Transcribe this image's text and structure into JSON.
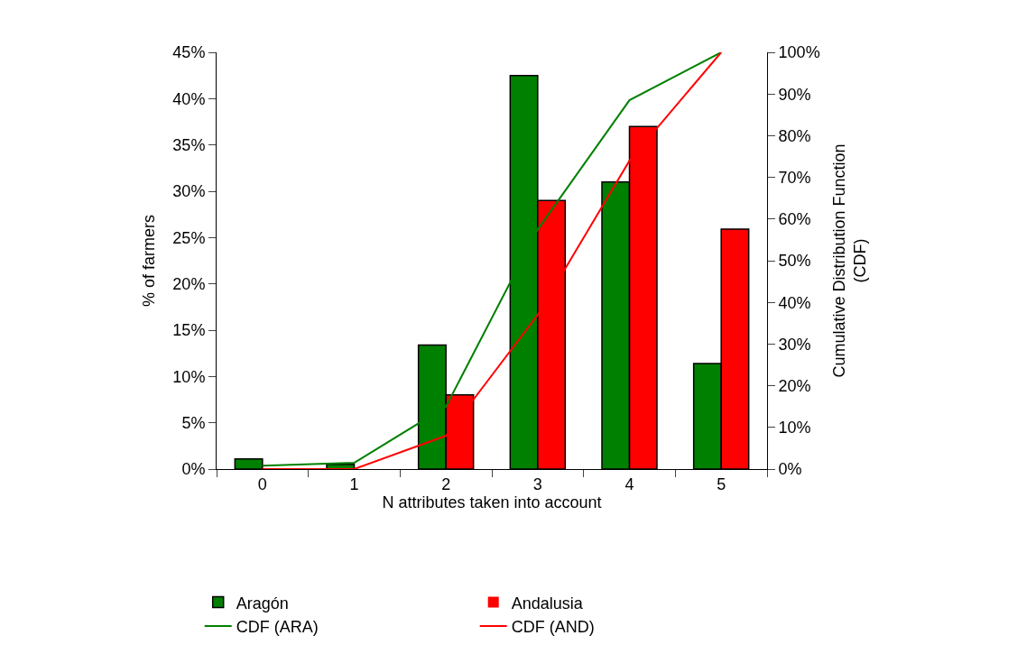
{
  "chart_data": {
    "type": "bar",
    "xlabel": "N attributes taken into account",
    "ylabel": "% of farmers",
    "y2label": "Cumulative Distribution Function\n(CDF)",
    "categories": [
      "0",
      "1",
      "2",
      "3",
      "4",
      "5"
    ],
    "series": [
      {
        "name": "Aragón",
        "color": "#008000",
        "values": [
          1.1,
          0.5,
          13.4,
          42.5,
          31.0,
          11.4
        ]
      },
      {
        "name": "Andalusia",
        "color": "#ff0000",
        "values": [
          0,
          0,
          8.0,
          29.0,
          37.0,
          25.9
        ]
      },
      {
        "name": "CDF (ARA)",
        "type": "line",
        "axis": "y2",
        "color": "#008000",
        "values": [
          0.8,
          1.5,
          15.0,
          57.5,
          88.5,
          100
        ]
      },
      {
        "name": "CDF (AND)",
        "type": "line",
        "axis": "y2",
        "color": "#ff0000",
        "values": [
          0,
          0,
          8.0,
          37.0,
          74.0,
          100
        ]
      }
    ],
    "ylim": [
      0,
      45
    ],
    "yticks": [
      {
        "value": 0,
        "label": "0%"
      },
      {
        "value": 5,
        "label": "5%"
      },
      {
        "value": 10,
        "label": "10%"
      },
      {
        "value": 15,
        "label": "15%"
      },
      {
        "value": 20,
        "label": "20%"
      },
      {
        "value": 25,
        "label": "25%"
      },
      {
        "value": 30,
        "label": "30%"
      },
      {
        "value": 35,
        "label": "35%"
      },
      {
        "value": 40,
        "label": "40%"
      },
      {
        "value": 45,
        "label": "45%"
      }
    ],
    "y2lim": [
      0,
      100
    ],
    "y2ticks": [
      {
        "value": 0,
        "label": "0%"
      },
      {
        "value": 10,
        "label": "10%"
      },
      {
        "value": 20,
        "label": "20%"
      },
      {
        "value": 30,
        "label": "30%"
      },
      {
        "value": 40,
        "label": "40%"
      },
      {
        "value": 50,
        "label": "50%"
      },
      {
        "value": 60,
        "label": "60%"
      },
      {
        "value": 70,
        "label": "70%"
      },
      {
        "value": 80,
        "label": "80%"
      },
      {
        "value": 90,
        "label": "90%"
      },
      {
        "value": 100,
        "label": "100%"
      }
    ],
    "legend": "bottom",
    "marker": "none",
    "line_style": "solid"
  }
}
